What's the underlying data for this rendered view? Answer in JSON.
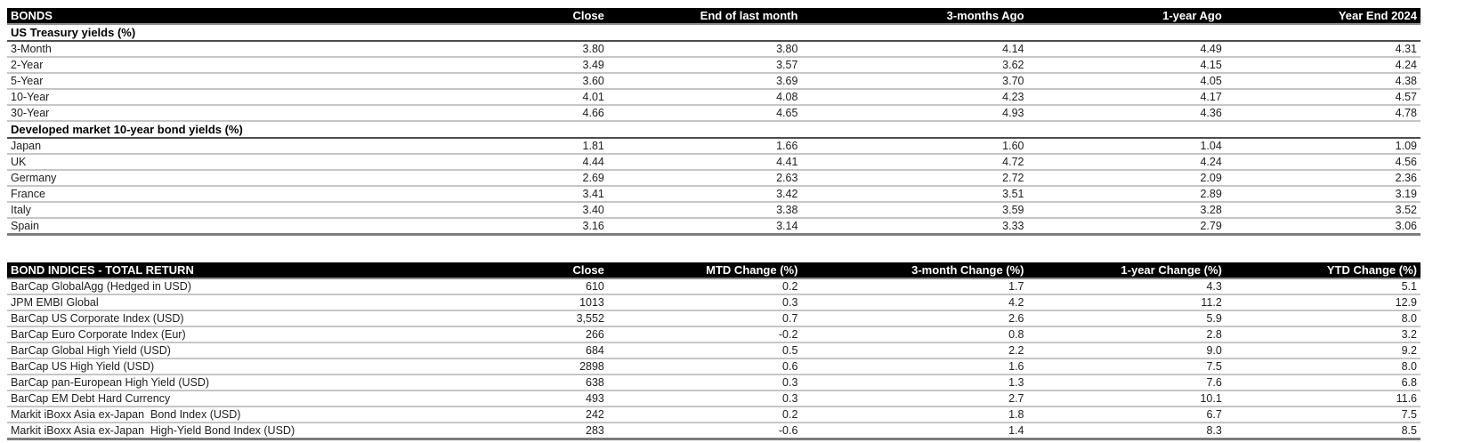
{
  "tables": [
    {
      "title": "BONDS",
      "columns": [
        "Close",
        "End of last month",
        "3-months Ago",
        "1-year Ago",
        "Year End 2024"
      ],
      "sections": [
        {
          "label": "US Treasury yields (%)",
          "rows": [
            {
              "label": "3-Month",
              "values": [
                "3.80",
                "3.80",
                "4.14",
                "4.49",
                "4.31"
              ]
            },
            {
              "label": "2-Year",
              "values": [
                "3.49",
                "3.57",
                "3.62",
                "4.15",
                "4.24"
              ]
            },
            {
              "label": "5-Year",
              "values": [
                "3.60",
                "3.69",
                "3.70",
                "4.05",
                "4.38"
              ]
            },
            {
              "label": "10-Year",
              "values": [
                "4.01",
                "4.08",
                "4.23",
                "4.17",
                "4.57"
              ]
            },
            {
              "label": "30-Year",
              "values": [
                "4.66",
                "4.65",
                "4.93",
                "4.36",
                "4.78"
              ]
            }
          ]
        },
        {
          "label": "Developed market 10-year bond yields (%)",
          "rows": [
            {
              "label": "Japan",
              "values": [
                "1.81",
                "1.66",
                "1.60",
                "1.04",
                "1.09"
              ]
            },
            {
              "label": "UK",
              "values": [
                "4.44",
                "4.41",
                "4.72",
                "4.24",
                "4.56"
              ]
            },
            {
              "label": "Germany",
              "values": [
                "2.69",
                "2.63",
                "2.72",
                "2.09",
                "2.36"
              ]
            },
            {
              "label": "France",
              "values": [
                "3.41",
                "3.42",
                "3.51",
                "2.89",
                "3.19"
              ]
            },
            {
              "label": "Italy",
              "values": [
                "3.40",
                "3.38",
                "3.59",
                "3.28",
                "3.52"
              ]
            },
            {
              "label": "Spain",
              "values": [
                "3.16",
                "3.14",
                "3.33",
                "2.79",
                "3.06"
              ]
            }
          ]
        }
      ]
    },
    {
      "title": "BOND INDICES - TOTAL RETURN",
      "columns": [
        "Close",
        "MTD Change (%)",
        "3-month Change (%)",
        "1-year Change (%)",
        "YTD Change (%)"
      ],
      "sections": [
        {
          "label": null,
          "rows": [
            {
              "label": "BarCap GlobalAgg (Hedged in USD)",
              "values": [
                "610",
                "0.2",
                "1.7",
                "4.3",
                "5.1"
              ]
            },
            {
              "label": "JPM EMBI Global",
              "values": [
                "1013",
                "0.3",
                "4.2",
                "11.2",
                "12.9"
              ]
            },
            {
              "label": "BarCap US Corporate Index (USD)",
              "values": [
                "3,552",
                "0.7",
                "2.6",
                "5.9",
                "8.0"
              ]
            },
            {
              "label": "BarCap Euro Corporate Index (Eur)",
              "values": [
                "266",
                "-0.2",
                "0.8",
                "2.8",
                "3.2"
              ]
            },
            {
              "label": "BarCap Global High Yield (USD)",
              "values": [
                "684",
                "0.5",
                "2.2",
                "9.0",
                "9.2"
              ]
            },
            {
              "label": "BarCap US High Yield (USD)",
              "values": [
                "2898",
                "0.6",
                "1.6",
                "7.5",
                "8.0"
              ]
            },
            {
              "label": "BarCap pan-European High Yield (USD)",
              "values": [
                "638",
                "0.3",
                "1.3",
                "7.6",
                "6.8"
              ]
            },
            {
              "label": "BarCap EM Debt Hard Currency",
              "values": [
                "493",
                "0.3",
                "2.7",
                "10.1",
                "11.6"
              ]
            },
            {
              "label": "Markit iBoxx Asia ex-Japan  Bond Index (USD)",
              "values": [
                "242",
                "0.2",
                "1.8",
                "6.7",
                "7.5"
              ]
            },
            {
              "label": "Markit iBoxx Asia ex-Japan  High-Yield Bond Index (USD)",
              "values": [
                "283",
                "-0.6",
                "1.4",
                "8.3",
                "8.5"
              ]
            }
          ]
        }
      ]
    }
  ]
}
